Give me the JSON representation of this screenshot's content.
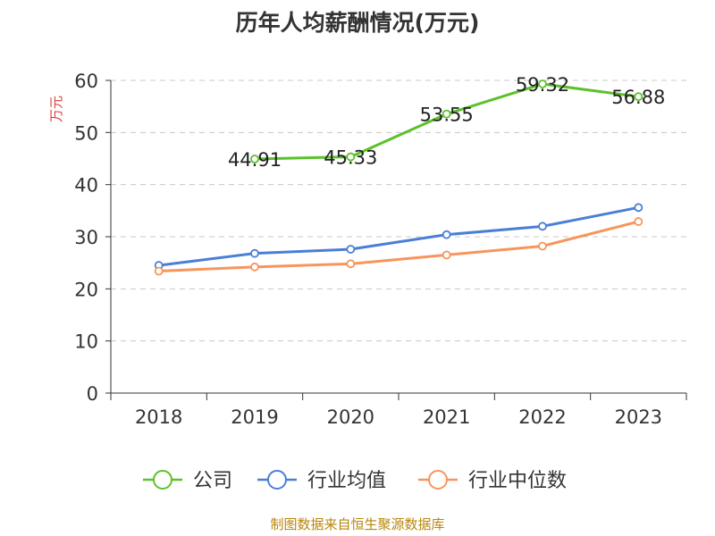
{
  "chart_data": {
    "type": "line",
    "title": "历年人均薪酬情况(万元)",
    "ylabel": "万元",
    "xlabel": "",
    "categories": [
      "2018",
      "2019",
      "2020",
      "2021",
      "2022",
      "2023"
    ],
    "ylim": [
      0,
      60
    ],
    "yticks": [
      0,
      10,
      20,
      30,
      40,
      50,
      60
    ],
    "grid": true,
    "legend": "bottom",
    "series": [
      {
        "name": "公司",
        "color": "#5cc12a",
        "values": [
          null,
          44.91,
          45.33,
          53.55,
          59.32,
          56.88
        ],
        "value_labels": [
          "",
          "44.91",
          "45.33",
          "53.55",
          "59.32",
          "56.88"
        ]
      },
      {
        "name": "行业均值",
        "color": "#4a7fd6",
        "values": [
          24.5,
          26.8,
          27.6,
          30.4,
          32.0,
          35.6
        ]
      },
      {
        "name": "行业中位数",
        "color": "#f7955c",
        "values": [
          23.4,
          24.2,
          24.8,
          26.5,
          28.2,
          32.9
        ]
      }
    ]
  },
  "source": "制图数据来自恒生聚源数据库"
}
